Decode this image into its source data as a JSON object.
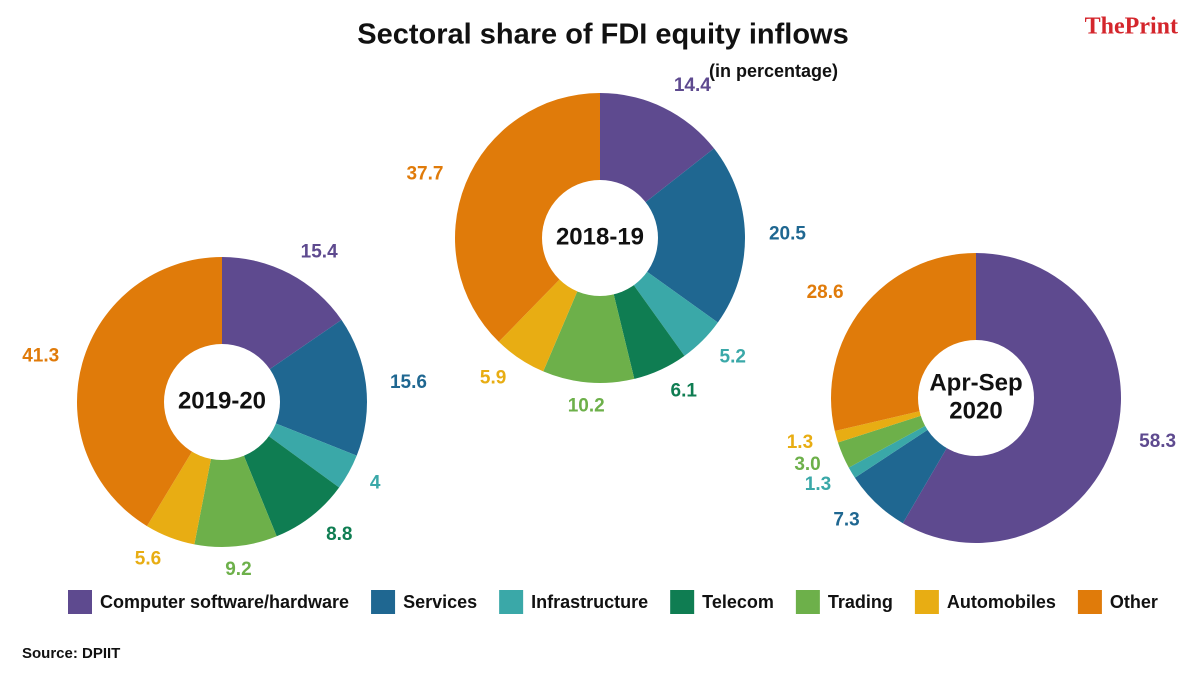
{
  "title": "Sectoral share of FDI equity inflows",
  "subtitle": "(in percentage)",
  "brand": "ThePrint",
  "source": "Source: DPIIT",
  "categories": [
    "Computer software/hardware",
    "Services",
    "Infrastructure",
    "Telecom",
    "Trading",
    "Automobiles",
    "Other"
  ],
  "colors": [
    "#5e4a8f",
    "#1f6791",
    "#3aa8a8",
    "#0f7d52",
    "#6db04a",
    "#e8ad13",
    "#e07b0a"
  ],
  "chart_data": [
    {
      "type": "pie",
      "label": [
        "2019-20"
      ],
      "values": [
        15.4,
        15.6,
        4,
        8.8,
        9.2,
        5.6,
        41.3
      ]
    },
    {
      "type": "pie",
      "label": [
        "2018-19"
      ],
      "values": [
        14.4,
        20.5,
        5.2,
        6.1,
        10.2,
        5.9,
        37.7
      ]
    },
    {
      "type": "pie",
      "label": [
        "Apr-Sep",
        "2020"
      ],
      "values": [
        58.3,
        7.3,
        1.3,
        null,
        3.0,
        1.3,
        28.6
      ],
      "value_labels": [
        "58.3",
        "7.3",
        "1.3",
        null,
        "3.0",
        "1.3",
        "28.6"
      ]
    }
  ]
}
